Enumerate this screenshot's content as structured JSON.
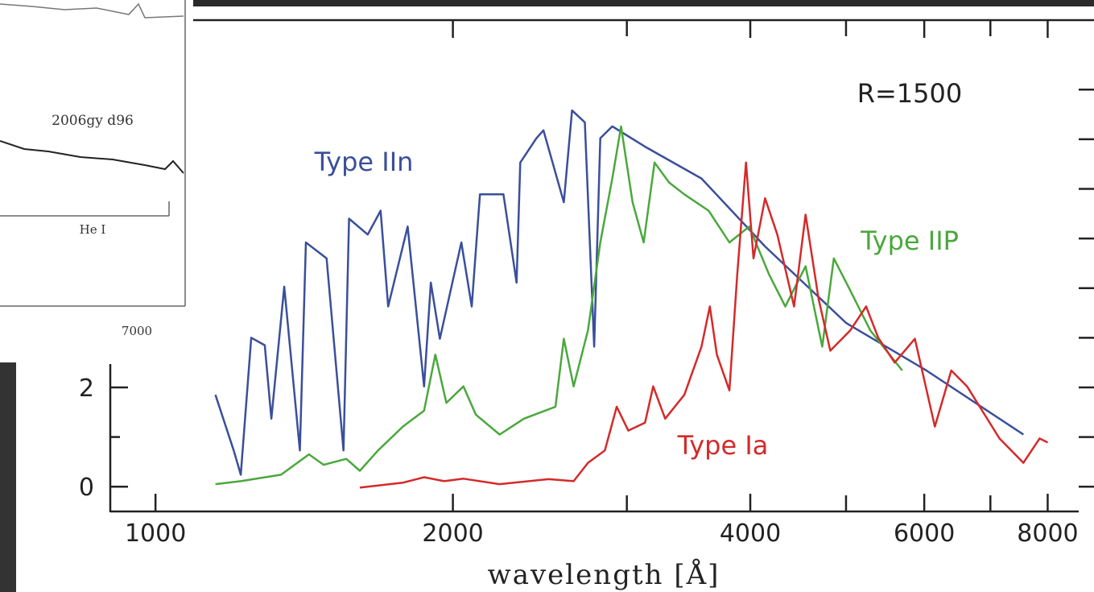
{
  "chart_data": {
    "type": "line",
    "x_label": "wavelength [Å]",
    "xlim": [
      900,
      8600
    ],
    "ylim": [
      -0.5,
      9.4
    ],
    "log_x": true,
    "xticks": [
      1000,
      2000,
      4000,
      6000,
      8000
    ],
    "x_minor_ticks": [
      3000,
      5000,
      7000
    ],
    "yticks": [
      0,
      2
    ],
    "y_minor_ticks": [
      1,
      3,
      4,
      5,
      6,
      7,
      8
    ],
    "annotations": [
      "R=1500"
    ],
    "inset_labels": [
      "2006gy d96",
      "He I",
      "7000"
    ],
    "series": [
      {
        "name": "Type IIn",
        "color": "#3a4f9a",
        "x": [
          1150,
          1200,
          1220,
          1250,
          1290,
          1310,
          1350,
          1400,
          1420,
          1490,
          1550,
          1570,
          1640,
          1690,
          1720,
          1800,
          1870,
          1900,
          1940,
          2040,
          2090,
          2130,
          2250,
          2320,
          2340,
          2430,
          2470,
          2590,
          2640,
          2720,
          2780,
          2820,
          2900,
          3130,
          3570,
          4140,
          5000,
          6030,
          7560
        ],
        "values": [
          1.85,
          0.73,
          0.24,
          3.0,
          2.85,
          1.37,
          4.03,
          0.73,
          4.92,
          4.6,
          0.73,
          5.4,
          5.08,
          5.56,
          3.63,
          5.24,
          2.02,
          4.11,
          2.98,
          4.92,
          3.63,
          5.89,
          5.89,
          4.11,
          6.53,
          7.02,
          7.18,
          5.73,
          7.58,
          7.34,
          2.82,
          7.02,
          7.26,
          6.85,
          6.21,
          4.84,
          3.3,
          2.34,
          1.05
        ]
      },
      {
        "name": "Type IIP",
        "color": "#4aa83c",
        "x": [
          1150,
          1220,
          1340,
          1430,
          1480,
          1560,
          1610,
          1680,
          1780,
          1870,
          1920,
          1970,
          2050,
          2110,
          2230,
          2360,
          2540,
          2590,
          2650,
          2740,
          2820,
          2900,
          2960,
          3040,
          3120,
          3200,
          3310,
          3430,
          3630,
          3810,
          3990,
          4180,
          4340,
          4550,
          4730,
          4860,
          5050,
          5290,
          5700
        ],
        "values": [
          0.05,
          0.11,
          0.24,
          0.65,
          0.44,
          0.56,
          0.32,
          0.73,
          1.21,
          1.53,
          2.66,
          1.69,
          2.02,
          1.45,
          1.05,
          1.37,
          1.61,
          2.98,
          2.02,
          3.15,
          4.92,
          6.21,
          7.26,
          5.73,
          4.92,
          6.53,
          6.13,
          5.89,
          5.56,
          4.92,
          5.24,
          4.27,
          3.63,
          4.44,
          2.82,
          4.6,
          3.95,
          3.15,
          2.34
        ]
      },
      {
        "name": "Type Ia",
        "color": "#d42a2a",
        "x": [
          1610,
          1780,
          1870,
          1960,
          2050,
          2230,
          2500,
          2650,
          2740,
          2850,
          2930,
          3010,
          3130,
          3190,
          3280,
          3430,
          3570,
          3640,
          3700,
          3810,
          3880,
          3960,
          4030,
          4140,
          4260,
          4430,
          4550,
          4690,
          4820,
          5050,
          5240,
          5390,
          5600,
          5870,
          6150,
          6390,
          6630,
          7150,
          7560,
          7850,
          8000
        ],
        "values": [
          -0.02,
          0.08,
          0.19,
          0.11,
          0.16,
          0.05,
          0.15,
          0.11,
          0.48,
          0.73,
          1.61,
          1.13,
          1.29,
          2.02,
          1.37,
          1.85,
          2.82,
          3.63,
          2.66,
          1.94,
          4.27,
          6.53,
          4.6,
          5.81,
          5.08,
          3.63,
          5.48,
          3.79,
          2.74,
          3.15,
          3.63,
          3.0,
          2.5,
          2.98,
          1.21,
          2.34,
          2.02,
          0.97,
          0.48,
          0.97,
          0.89
        ]
      }
    ]
  }
}
